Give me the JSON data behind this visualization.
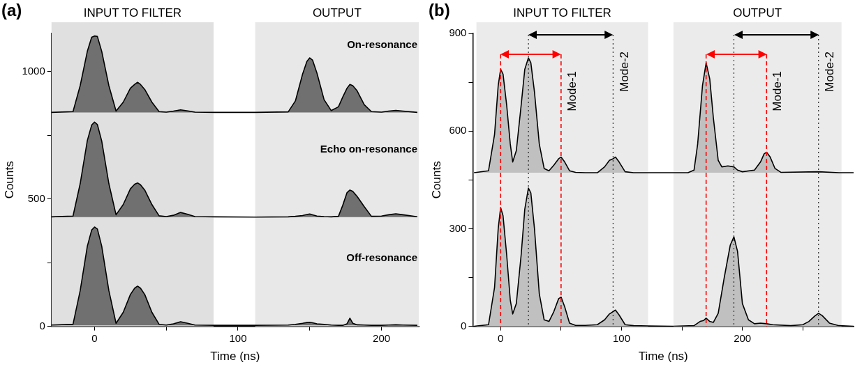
{
  "chart_data": [
    {
      "type": "area",
      "title": "(a)",
      "xlabel": "Time (ns)",
      "ylabel": "Counts",
      "xlim": [
        -30,
        226
      ],
      "xticks": [
        0,
        {
          "value": 50,
          "label": null
        },
        100,
        {
          "value": 150,
          "label": null
        },
        200
      ],
      "ylim": [
        0,
        1150
      ],
      "yticks": [
        0,
        {
          "value": 250,
          "label": null
        },
        500,
        {
          "value": 750,
          "label": null
        },
        1000
      ],
      "annotations": [
        "Off-resonance",
        "Echo on-resonance",
        "On-resonance"
      ],
      "bands": [
        {
          "axis": "x",
          "from": -30,
          "to": 83,
          "label": "INPUT TO FILTER",
          "color": "#e0e0e0"
        },
        {
          "axis": "x",
          "from": 112,
          "to": 226,
          "label": "OUTPUT",
          "color": "#e8e8e8"
        }
      ],
      "series": [
        {
          "color": "#707070",
          "x": [
            -30,
            -15,
            -10,
            -5,
            -2,
            0,
            2,
            5,
            10,
            15,
            20,
            25,
            28,
            30,
            32,
            35,
            40,
            45,
            50,
            55,
            60,
            65,
            70,
            84,
            112,
            135,
            140,
            145,
            148,
            150,
            152,
            155,
            160,
            165,
            170,
            173,
            176,
            178,
            180,
            183,
            188,
            193,
            200,
            205,
            210,
            215,
            225
          ],
          "values": [
            5,
            8,
            140,
            315,
            378,
            390,
            382,
            315,
            140,
            12,
            55,
            125,
            150,
            158,
            150,
            125,
            55,
            8,
            5,
            10,
            18,
            12,
            5,
            4,
            4,
            5,
            8,
            12,
            15,
            16,
            14,
            10,
            8,
            5,
            4,
            4,
            10,
            32,
            12,
            6,
            5,
            4,
            4,
            5,
            6,
            5,
            4
          ]
        },
        {
          "color": "#707070",
          "x": [
            -30,
            -15,
            -10,
            -5,
            -2,
            0,
            2,
            5,
            10,
            15,
            20,
            25,
            28,
            30,
            32,
            35,
            40,
            45,
            50,
            55,
            60,
            65,
            70,
            84,
            112,
            135,
            140,
            145,
            148,
            150,
            152,
            155,
            160,
            165,
            170,
            173,
            176,
            178,
            180,
            183,
            188,
            193,
            200,
            205,
            210,
            215,
            225
          ],
          "values": [
            430,
            433,
            560,
            730,
            790,
            802,
            792,
            728,
            560,
            438,
            478,
            540,
            558,
            563,
            556,
            535,
            478,
            434,
            431,
            436,
            447,
            440,
            431,
            430,
            429,
            430,
            432,
            435,
            439,
            441,
            438,
            433,
            431,
            430,
            432,
            475,
            525,
            535,
            530,
            510,
            470,
            432,
            433,
            438,
            442,
            438,
            430
          ]
        },
        {
          "color": "#707070",
          "x": [
            -30,
            -15,
            -10,
            -5,
            -2,
            0,
            2,
            5,
            10,
            15,
            20,
            25,
            28,
            30,
            32,
            35,
            40,
            45,
            50,
            55,
            60,
            65,
            70,
            84,
            112,
            135,
            140,
            145,
            148,
            150,
            152,
            155,
            160,
            165,
            170,
            173,
            176,
            178,
            180,
            183,
            188,
            193,
            200,
            205,
            210,
            215,
            225
          ],
          "values": [
            840,
            843,
            945,
            1080,
            1135,
            1140,
            1138,
            1080,
            945,
            845,
            880,
            935,
            950,
            958,
            950,
            930,
            880,
            843,
            841,
            845,
            850,
            846,
            841,
            840,
            840,
            842,
            885,
            990,
            1040,
            1054,
            1045,
            995,
            890,
            847,
            862,
            900,
            935,
            950,
            945,
            925,
            870,
            843,
            841,
            845,
            848,
            845,
            840
          ]
        }
      ]
    },
    {
      "type": "area",
      "title": "(b)",
      "xlabel": "Time (ns)",
      "ylabel": "Counts",
      "xlim": [
        -23,
        292
      ],
      "xticks": [
        0,
        {
          "value": 50,
          "label": null
        },
        100,
        {
          "value": 150,
          "label": null
        },
        200,
        {
          "value": 250,
          "label": null
        }
      ],
      "ylim": [
        0,
        900
      ],
      "yticks": [
        0,
        {
          "value": 150,
          "label": null
        },
        300,
        {
          "value": 450,
          "label": null
        },
        600,
        {
          "value": 750,
          "label": null
        },
        900
      ],
      "bands": [
        {
          "axis": "x",
          "from": -20,
          "to": 122,
          "label": "INPUT TO FILTER",
          "color": "#ebebeb"
        },
        {
          "axis": "x",
          "from": 143,
          "to": 282,
          "label": "OUTPUT",
          "color": "#ebebeb"
        }
      ],
      "ref_lines": [
        {
          "axis": "x",
          "value": 0,
          "color": "#ff0000",
          "line_style": "dashed"
        },
        {
          "axis": "x",
          "value": 50,
          "label": "Mode-1",
          "color": "#ff0000",
          "line_style": "dashed"
        },
        {
          "axis": "x",
          "value": 170,
          "color": "#ff0000",
          "line_style": "dashed"
        },
        {
          "axis": "x",
          "value": 220,
          "label": "Mode-1",
          "color": "#ff0000",
          "line_style": "dashed"
        },
        {
          "axis": "x",
          "value": 23,
          "color": "#000000",
          "line_style": "dotted"
        },
        {
          "axis": "x",
          "value": 93,
          "label": "Mode-2",
          "color": "#000000",
          "line_style": "dotted"
        },
        {
          "axis": "x",
          "value": 193,
          "color": "#000000",
          "line_style": "dotted"
        },
        {
          "axis": "x",
          "value": 263,
          "label": "Mode-2",
          "color": "#000000",
          "line_style": "dotted"
        }
      ],
      "series": [
        {
          "color": "#c0c0c0",
          "x": [
            -22,
            -10,
            -5,
            -2,
            0,
            2,
            5,
            8,
            10,
            13,
            17,
            20,
            23,
            25,
            28,
            32,
            36,
            40,
            44,
            48,
            50,
            53,
            57,
            62,
            70,
            80,
            86,
            90,
            95,
            98,
            103,
            110,
            122,
            143,
            160,
            165,
            168,
            170,
            173,
            176,
            180,
            185,
            190,
            193,
            196,
            200,
            205,
            210,
            215,
            220,
            225,
            240,
            250,
            255,
            260,
            263,
            266,
            272,
            280,
            292
          ],
          "values": [
            0,
            5,
            120,
            300,
            365,
            340,
            220,
            80,
            38,
            70,
            220,
            360,
            425,
            410,
            300,
            100,
            20,
            15,
            45,
            85,
            90,
            60,
            10,
            3,
            3,
            5,
            20,
            38,
            50,
            35,
            5,
            2,
            1,
            0,
            2,
            15,
            18,
            25,
            15,
            12,
            40,
            150,
            250,
            275,
            230,
            70,
            20,
            8,
            10,
            8,
            5,
            2,
            5,
            15,
            32,
            40,
            33,
            10,
            2,
            0
          ]
        },
        {
          "color": "#c0c0c0",
          "x": [
            -22,
            -10,
            -5,
            -2,
            0,
            2,
            5,
            8,
            10,
            13,
            17,
            20,
            23,
            25,
            28,
            32,
            36,
            40,
            44,
            48,
            50,
            53,
            57,
            62,
            70,
            80,
            86,
            90,
            93,
            95,
            98,
            103,
            110,
            122,
            143,
            155,
            160,
            163,
            167,
            170,
            173,
            176,
            180,
            183,
            188,
            193,
            196,
            200,
            210,
            215,
            218,
            220,
            223,
            227,
            232,
            263,
            280,
            292
          ],
          "values": [
            472,
            478,
            590,
            740,
            790,
            775,
            680,
            560,
            505,
            540,
            680,
            790,
            825,
            810,
            720,
            560,
            485,
            478,
            495,
            515,
            520,
            505,
            478,
            473,
            472,
            472,
            490,
            510,
            515,
            520,
            505,
            475,
            472,
            472,
            472,
            472,
            480,
            560,
            740,
            810,
            760,
            640,
            510,
            490,
            493,
            490,
            480,
            475,
            480,
            505,
            530,
            535,
            520,
            485,
            473,
            475,
            472,
            472
          ]
        }
      ]
    }
  ]
}
